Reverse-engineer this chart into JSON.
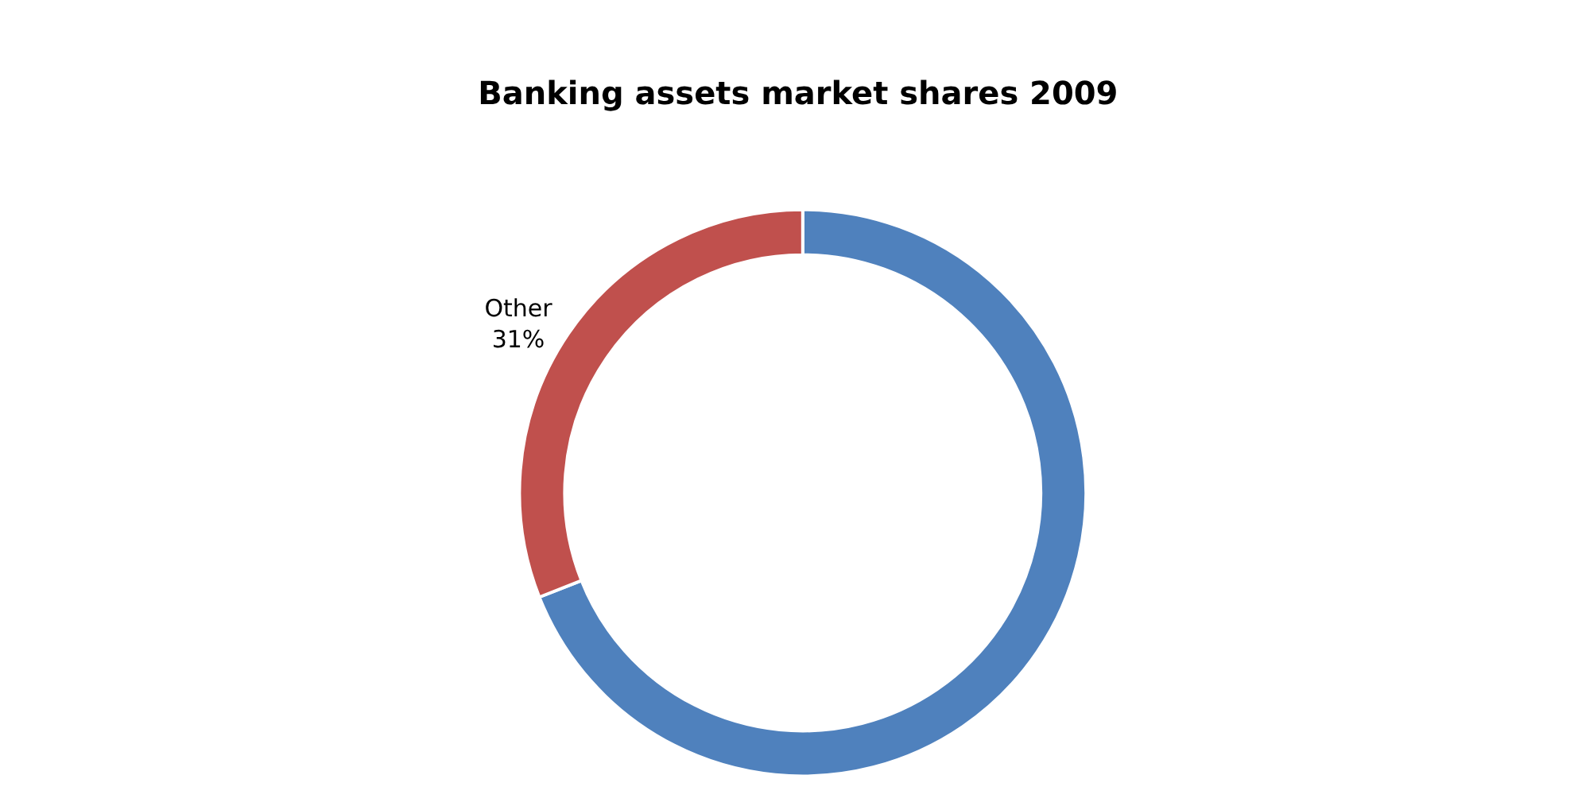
{
  "chart_data": {
    "type": "donut",
    "title": "Banking assets market shares 2009",
    "categories": [
      null,
      "Other"
    ],
    "values": [
      69,
      31
    ],
    "value_labels": [
      null,
      "31%"
    ],
    "colors": [
      "#4f81bd",
      "#c0504d"
    ],
    "legend": false
  }
}
